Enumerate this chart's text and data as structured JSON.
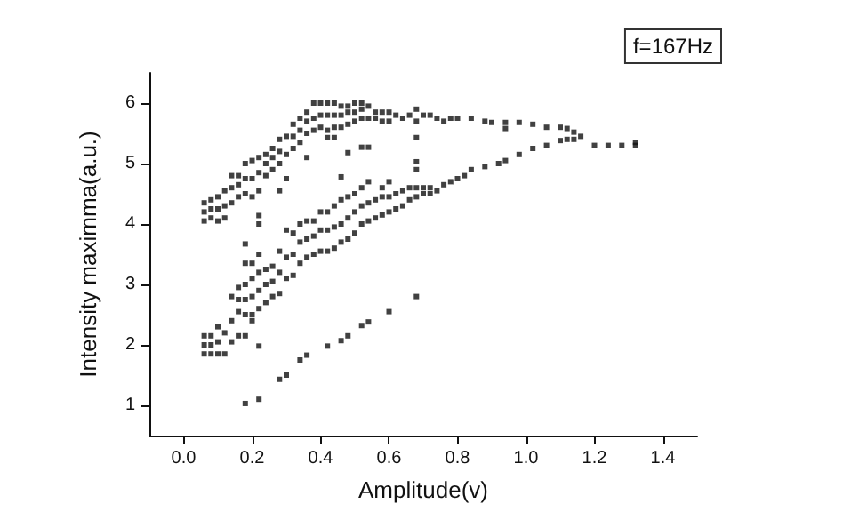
{
  "chart_data": {
    "type": "scatter",
    "xlabel": "Amplitude(v)",
    "ylabel": "Intensity maximma(a.u.)",
    "annotations": [
      "f=167Hz"
    ],
    "xlim": [
      -0.1,
      1.5
    ],
    "ylim": [
      0.5,
      6.5
    ],
    "xticks": [
      {
        "value": 0,
        "label": "0.0"
      },
      0.2,
      0.4,
      0.6,
      0.8,
      {
        "value": 1,
        "label": "1.0"
      },
      1.2,
      1.4
    ],
    "yticks": [
      1,
      2,
      3,
      4,
      5,
      6
    ],
    "grid": false,
    "marker": "square",
    "series": [
      {
        "color": "#111111",
        "x": [
          0.06,
          0.06,
          0.06,
          0.08,
          0.08,
          0.08,
          0.1,
          0.1,
          0.1,
          0.12,
          0.12,
          0.12,
          0.14,
          0.14,
          0.14,
          0.16,
          0.16,
          0.16,
          0.18,
          0.18,
          0.18,
          0.2,
          0.2,
          0.2,
          0.22,
          0.22,
          0.22,
          0.24,
          0.24,
          0.24,
          0.26,
          0.26,
          0.26,
          0.28,
          0.28,
          0.28,
          0.3,
          0.3,
          0.3,
          0.32,
          0.32,
          0.32,
          0.34,
          0.34,
          0.34,
          0.36,
          0.36,
          0.36,
          0.38,
          0.38,
          0.38,
          0.4,
          0.4,
          0.4,
          0.42,
          0.42,
          0.42,
          0.44,
          0.44,
          0.44,
          0.46,
          0.46,
          0.46,
          0.48,
          0.48,
          0.48,
          0.5,
          0.5,
          0.5,
          0.52,
          0.52,
          0.52
        ],
        "values": [
          4.05,
          4.2,
          4.35,
          4.1,
          4.25,
          4.4,
          4.05,
          4.25,
          4.45,
          4.1,
          4.3,
          4.55,
          4.35,
          4.6,
          4.8,
          4.45,
          4.65,
          4.8,
          4.5,
          4.75,
          5.0,
          4.45,
          4.75,
          5.05,
          4.55,
          4.85,
          5.1,
          4.8,
          5.0,
          5.15,
          4.9,
          5.1,
          5.25,
          5.0,
          5.2,
          5.4,
          4.75,
          5.15,
          5.45,
          5.25,
          5.45,
          5.65,
          5.35,
          5.55,
          5.75,
          5.5,
          5.7,
          5.85,
          5.55,
          5.75,
          6.0,
          5.6,
          5.8,
          6.0,
          5.55,
          5.8,
          6.0,
          5.6,
          5.8,
          6.0,
          5.6,
          5.8,
          5.95,
          5.65,
          5.85,
          5.95,
          5.7,
          5.85,
          6.0,
          5.75,
          5.9,
          6.0
        ]
      },
      {
        "color": "#111111",
        "x": [
          0.54,
          0.54,
          0.56,
          0.56,
          0.58,
          0.58,
          0.6,
          0.6,
          0.68,
          0.68,
          0.62,
          0.64,
          0.66,
          0.7,
          0.72,
          0.74,
          0.76,
          0.78,
          0.8,
          0.84,
          0.88,
          0.9,
          0.94,
          0.98,
          1.02,
          1.06,
          1.1,
          1.12,
          1.14,
          1.16,
          1.2,
          1.24,
          1.28,
          1.32,
          1.32
        ],
        "values": [
          5.75,
          5.95,
          5.75,
          5.85,
          5.7,
          5.85,
          5.7,
          5.85,
          5.7,
          5.9,
          5.8,
          5.75,
          5.8,
          5.8,
          5.8,
          5.75,
          5.7,
          5.75,
          5.75,
          5.75,
          5.7,
          5.68,
          5.68,
          5.68,
          5.65,
          5.6,
          5.6,
          5.58,
          5.52,
          5.45,
          5.3,
          5.3,
          5.3,
          5.3,
          5.35
        ]
      },
      {
        "color": "#111111",
        "x": [
          0.06,
          0.06,
          0.06,
          0.08,
          0.08,
          0.08,
          0.1,
          0.1,
          0.1,
          0.14,
          0.14,
          0.14,
          0.16,
          0.16,
          0.16,
          0.22,
          0.22,
          0.22,
          0.24,
          0.24,
          0.24,
          0.26,
          0.26,
          0.26,
          0.28,
          0.28,
          0.28,
          0.3,
          0.3,
          0.3,
          0.32,
          0.32,
          0.32,
          0.34,
          0.34,
          0.34,
          0.36,
          0.36,
          0.36,
          0.38,
          0.38,
          0.38,
          0.4,
          0.4,
          0.4,
          0.42,
          0.42,
          0.42,
          0.44,
          0.44,
          0.44,
          0.46,
          0.46,
          0.46,
          0.48,
          0.48,
          0.48,
          0.5,
          0.5,
          0.5,
          0.52,
          0.52,
          0.52,
          0.54,
          0.54,
          0.54,
          0.58,
          0.58,
          0.58,
          0.6,
          0.6,
          0.6
        ],
        "values": [
          1.85,
          2.0,
          2.15,
          1.85,
          2.0,
          2.15,
          1.85,
          2.05,
          2.3,
          2.05,
          2.4,
          2.8,
          2.55,
          2.75,
          2.95,
          2.6,
          2.9,
          3.2,
          2.7,
          3.0,
          3.25,
          2.8,
          3.05,
          3.3,
          2.85,
          3.2,
          3.55,
          3.1,
          3.45,
          3.9,
          3.15,
          3.5,
          3.85,
          3.35,
          3.7,
          4.0,
          3.45,
          3.75,
          4.05,
          3.5,
          3.8,
          4.05,
          3.55,
          3.9,
          4.2,
          3.55,
          3.9,
          4.2,
          3.6,
          3.95,
          4.3,
          3.7,
          4.0,
          4.4,
          3.75,
          4.1,
          4.45,
          3.85,
          4.2,
          4.5,
          4.0,
          4.3,
          4.6,
          4.05,
          4.35,
          4.7,
          4.15,
          4.45,
          4.6,
          4.2,
          4.45,
          4.7
        ]
      },
      {
        "color": "#111111",
        "x": [
          0.18,
          0.18,
          0.18,
          0.18,
          0.2,
          0.2,
          0.2,
          0.2,
          0.12,
          0.12,
          0.56,
          0.56,
          0.62,
          0.62,
          0.64,
          0.64,
          0.66,
          0.66,
          0.68,
          0.68,
          0.7,
          0.7,
          0.72,
          0.72,
          0.74,
          0.76,
          0.78,
          0.8,
          0.82,
          0.84,
          0.88,
          0.92,
          0.94,
          0.98,
          1.02,
          1.06,
          1.1,
          1.12,
          1.14
        ],
        "values": [
          2.5,
          2.75,
          3.0,
          3.35,
          2.5,
          2.8,
          3.1,
          3.35,
          1.85,
          2.2,
          4.1,
          4.4,
          4.25,
          4.5,
          4.3,
          4.55,
          4.4,
          4.6,
          4.45,
          4.6,
          4.5,
          4.6,
          4.5,
          4.6,
          4.55,
          4.65,
          4.7,
          4.75,
          4.8,
          4.9,
          4.95,
          5.0,
          5.05,
          5.15,
          5.25,
          5.3,
          5.38,
          5.4,
          5.4
        ]
      },
      {
        "color": "#111111",
        "x": [
          0.18,
          0.22,
          0.28,
          0.3,
          0.34,
          0.36,
          0.42,
          0.46,
          0.48,
          0.52,
          0.54,
          0.6,
          0.68
        ],
        "values": [
          1.03,
          1.1,
          1.43,
          1.5,
          1.75,
          1.83,
          1.98,
          2.07,
          2.15,
          2.32,
          2.38,
          2.55,
          2.8
        ]
      },
      {
        "color": "#111111",
        "x": [
          0.68,
          0.68,
          0.68,
          0.48,
          0.46,
          0.36,
          0.28,
          0.22,
          0.22,
          0.18,
          0.22,
          0.22,
          0.2,
          0.16,
          0.18,
          0.52,
          0.54,
          0.42,
          0.44,
          0.94
        ],
        "values": [
          5.43,
          5.03,
          4.9,
          5.18,
          4.78,
          5.1,
          4.55,
          4.0,
          4.14,
          3.67,
          3.5,
          1.98,
          2.4,
          2.15,
          2.15,
          5.27,
          5.27,
          5.43,
          5.43,
          5.58
        ]
      }
    ]
  }
}
